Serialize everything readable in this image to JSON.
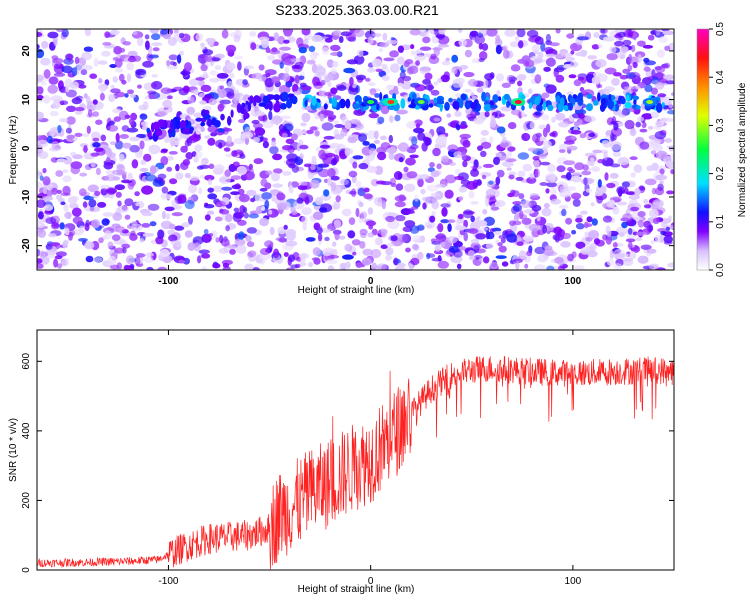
{
  "figure": {
    "title": "S233.2025.363.03.00.R21"
  },
  "chart_data": [
    {
      "type": "heatmap",
      "xlabel": "Height of straight line (km)",
      "ylabel": "Frequency (Hz)",
      "xlim": [
        -165,
        150
      ],
      "ylim": [
        -25,
        24.5
      ],
      "xticks": [
        -100,
        0,
        100
      ],
      "xtick_labels": [
        "-100",
        "0",
        "100"
      ],
      "yticks": [
        -20,
        -10,
        0,
        10,
        20
      ],
      "ytick_labels": [
        "-20",
        "-10",
        "0",
        "10",
        "20"
      ],
      "colorbar": {
        "label": "Normalized spectral amplitude",
        "range": [
          0,
          0.5
        ],
        "ticks": [
          0,
          0.1,
          0.2,
          0.3,
          0.4,
          0.5
        ],
        "tick_labels": [
          "0.0",
          "0.1",
          "0.2",
          "0.3",
          "0.4",
          "0.5"
        ],
        "colors": [
          "#ffffff",
          "#e0c8ff",
          "#8000ff",
          "#0000ff",
          "#00ffff",
          "#00ff00",
          "#ffff00",
          "#ff8000",
          "#ff0000",
          "#ff00c0"
        ]
      },
      "ridge": {
        "description_band": "frequency ridge",
        "frequency_hz": 9.5,
        "x_range": [
          -110,
          145
        ],
        "peak_amplitude": 0.4
      }
    },
    {
      "type": "line",
      "xlabel": "Height of straight line (km)",
      "ylabel": "SNR (10 * v/v)",
      "xlim": [
        -165,
        150
      ],
      "ylim": [
        0,
        690
      ],
      "xticks": [
        -100,
        0,
        100
      ],
      "xtick_labels": [
        "-100",
        "0",
        "100"
      ],
      "yticks": [
        0,
        200,
        400,
        600
      ],
      "ytick_labels": [
        "0",
        "200",
        "400",
        "600"
      ],
      "color": "#ff2020",
      "x": [
        -165,
        -140,
        -120,
        -105,
        -100,
        -90,
        -80,
        -70,
        -60,
        -50,
        -45,
        -40,
        -30,
        -20,
        -10,
        0,
        10,
        20,
        30,
        40,
        50,
        60,
        70,
        80,
        100,
        120,
        140,
        150
      ],
      "y": [
        20,
        22,
        25,
        30,
        45,
        70,
        90,
        95,
        100,
        120,
        160,
        175,
        220,
        250,
        290,
        320,
        380,
        450,
        520,
        560,
        575,
        580,
        575,
        570,
        565,
        570,
        575,
        570
      ]
    }
  ]
}
